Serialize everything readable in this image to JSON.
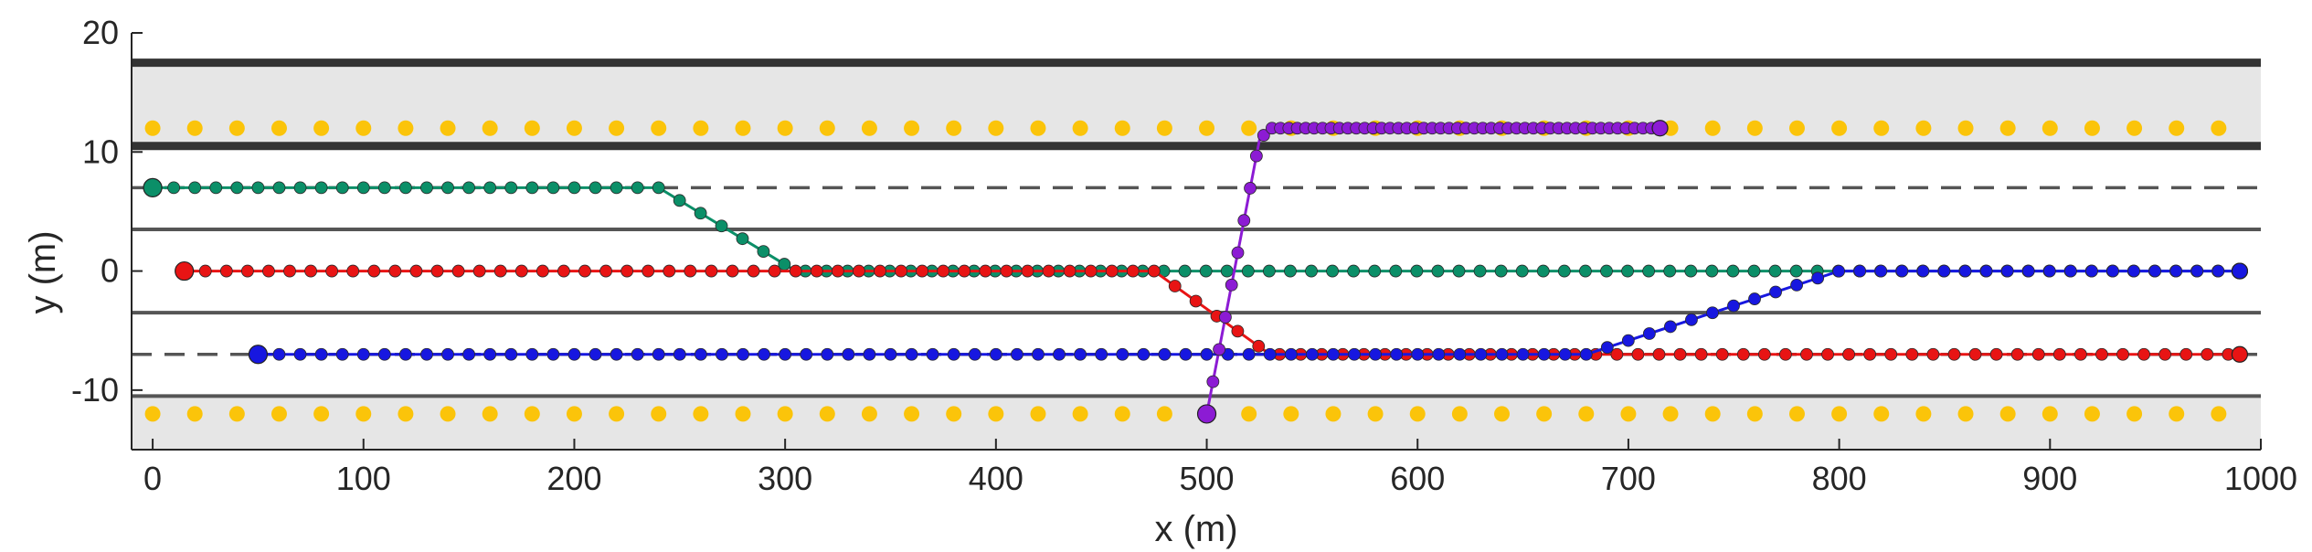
{
  "chart_data": {
    "type": "scatter",
    "title": "",
    "xlabel": "x (m)",
    "ylabel": "y (m)",
    "xlim": [
      -10,
      1000
    ],
    "ylim": [
      -15,
      20
    ],
    "xticks": [
      0,
      100,
      200,
      300,
      400,
      500,
      600,
      700,
      800,
      900,
      1000
    ],
    "yticks": [
      -10,
      0,
      10,
      20
    ],
    "grid": false,
    "legend": "none",
    "road": {
      "shoulder_color": "#e6e6e6",
      "shoulders": [
        [
          10.5,
          17.5
        ],
        [
          -15,
          -10.5
        ]
      ],
      "thick_lines": [
        17.5,
        10.5
      ],
      "solid_lines": [
        3.5,
        -3.5,
        -10.5
      ],
      "dashed_lines": [
        7,
        -7
      ],
      "line_color": "#555555"
    },
    "markers": {
      "color": "#fbc40a",
      "rows": [
        {
          "y": 12,
          "x_start": 0,
          "x_end": 980,
          "step": 20
        },
        {
          "y": -12,
          "x_start": 0,
          "x_end": 980,
          "step": 20
        }
      ]
    },
    "series": [
      {
        "color": "#0b8f68",
        "dot_step": 10,
        "path": [
          [
            0,
            7
          ],
          [
            240,
            7
          ],
          [
            305,
            0
          ],
          [
            990,
            0
          ]
        ]
      },
      {
        "color": "#e81414",
        "dot_step": 10,
        "path": [
          [
            15,
            0
          ],
          [
            475,
            0
          ],
          [
            530,
            -7
          ],
          [
            990,
            -7
          ]
        ]
      },
      {
        "color": "#1717e0",
        "dot_step": 10,
        "path": [
          [
            50,
            -7
          ],
          [
            680,
            -7
          ],
          [
            800,
            0
          ],
          [
            990,
            0
          ]
        ]
      },
      {
        "color": "#8c1bd4",
        "dot_step": 4,
        "path": [
          [
            500,
            -12
          ],
          [
            525,
            11
          ],
          [
            530,
            12
          ],
          [
            715,
            12
          ]
        ]
      }
    ]
  }
}
